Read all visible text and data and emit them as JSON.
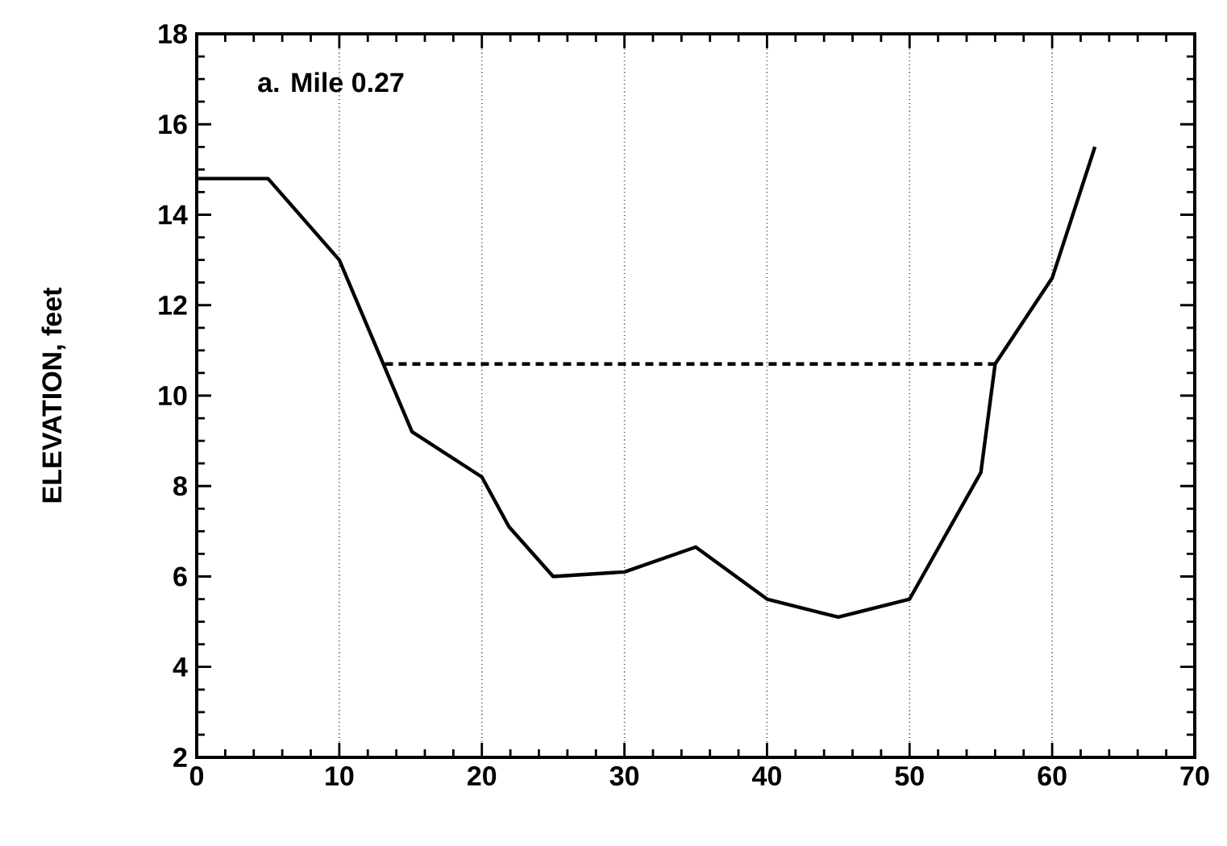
{
  "chart_data": {
    "type": "line",
    "ylabel": "ELEVATION, feet",
    "annotations": [
      "a.  Mile 0.27"
    ],
    "series": [
      {
        "color": "#000000",
        "line_style": "solid",
        "x": [
          0,
          5,
          10,
          15.1,
          20,
          21.9,
          25,
          30,
          35,
          40,
          45,
          50,
          55,
          56,
          60,
          63
        ],
        "values": [
          14.8,
          14.8,
          13.0,
          9.2,
          8.2,
          7.1,
          6.0,
          6.1,
          6.65,
          5.5,
          5.1,
          5.5,
          8.3,
          10.7,
          12.6,
          15.5
        ]
      },
      {
        "color": "#000000",
        "line_style": "dashed",
        "x": [
          13.2,
          56
        ],
        "values": [
          10.7,
          10.7
        ]
      }
    ],
    "xlim": [
      0,
      70
    ],
    "xticks": [
      0,
      10,
      20,
      30,
      40,
      50,
      60,
      70
    ],
    "ylim": [
      2,
      18
    ],
    "yticks": [
      2,
      4,
      6,
      8,
      10,
      12,
      14,
      16,
      18
    ],
    "grid": "x",
    "marker": "none"
  }
}
